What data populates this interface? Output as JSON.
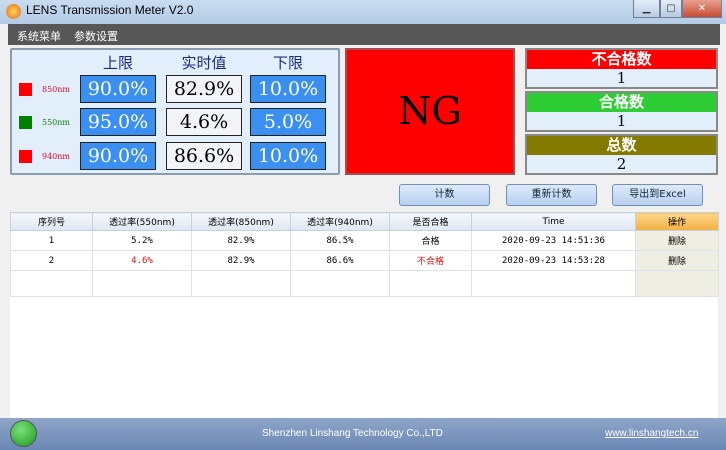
{
  "window": {
    "title": "LENS Transmission Meter V2.0",
    "minimize": "▁",
    "maximize": "▢",
    "close": "✕"
  },
  "menu": [
    "系统菜单",
    "参数设置"
  ],
  "panel": {
    "headers": [
      "上限",
      "实时值",
      "下限"
    ],
    "rows": [
      {
        "label": "850nm",
        "color": "#ff0000",
        "upper": "90.0%",
        "realtime": "82.9%",
        "lower": "10.0%"
      },
      {
        "label": "550nm",
        "color": "#008000",
        "upper": "95.0%",
        "realtime": "4.6%",
        "lower": "5.0%"
      },
      {
        "label": "940nm",
        "color": "#ff0000",
        "upper": "90.0%",
        "realtime": "86.6%",
        "lower": "10.0%"
      }
    ]
  },
  "result": {
    "text": "NG",
    "color": "#ff0000"
  },
  "counters": [
    {
      "label": "不合格数",
      "value": "1",
      "color": "#ff0000"
    },
    {
      "label": "合格数",
      "value": "1",
      "color": "#2ecc35"
    },
    {
      "label": "总数",
      "value": "2",
      "color": "#857a00"
    }
  ],
  "buttons": {
    "count": "计数",
    "recount": "重新计数",
    "export": "导出到Excel"
  },
  "table": {
    "columns": [
      "序列号",
      "透过率(550nm)",
      "透过率(850nm)",
      "透过率(940nm)",
      "是否合格",
      "Time",
      "操作"
    ],
    "rows": [
      {
        "id": "1",
        "t550": "5.2%",
        "t850": "82.9%",
        "t940": "86.5%",
        "pass": "合格",
        "time": "2020-09-23 14:51:36",
        "action": "删除"
      },
      {
        "id": "2",
        "t550": "4.6%",
        "t850": "82.9%",
        "t940": "86.6%",
        "pass": "不合格",
        "time": "2020-09-23 14:53:28",
        "action": "删除"
      }
    ]
  },
  "status": {
    "company": "Shenzhen Linshang Technology Co.,LTD",
    "website": "www.linshangtech.cn",
    "indicator_color": "#2aaa2a"
  }
}
